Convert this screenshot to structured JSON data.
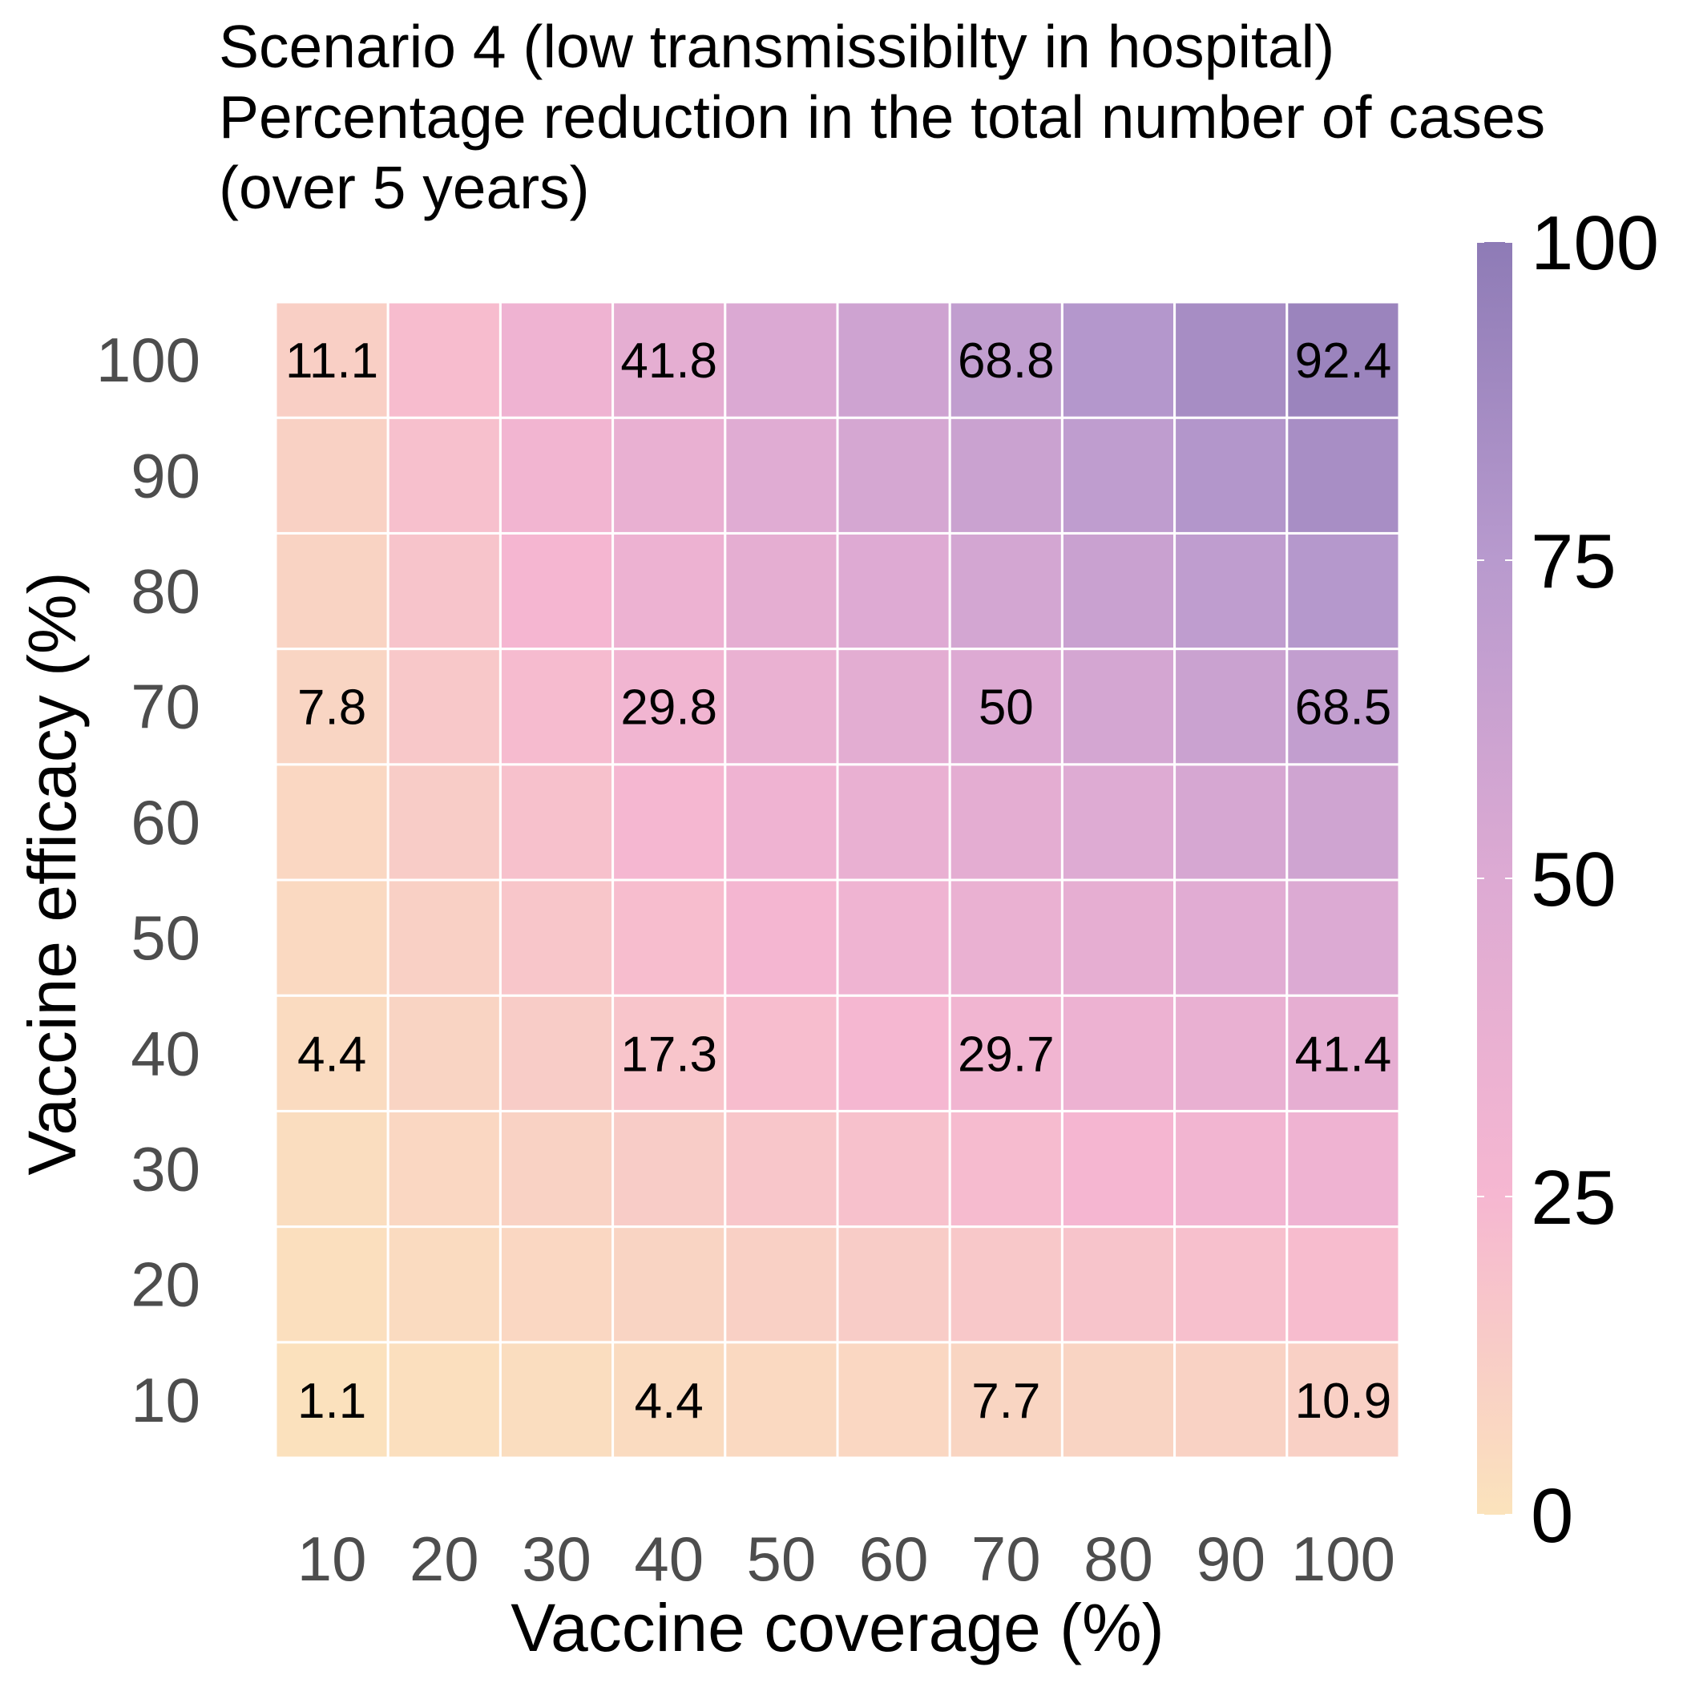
{
  "chart_data": {
    "type": "heatmap",
    "title_lines": [
      "Scenario 4 (low transmissibilty in hospital)",
      "Percentage reduction in the total number of cases",
      "(over 5 years)"
    ],
    "xlabel": "Vaccine coverage (%)",
    "ylabel": "Vaccine efficacy (%)",
    "x_categories": [
      "10",
      "20",
      "30",
      "40",
      "50",
      "60",
      "70",
      "80",
      "90",
      "100"
    ],
    "y_categories": [
      "10",
      "20",
      "30",
      "40",
      "50",
      "60",
      "70",
      "80",
      "90",
      "100"
    ],
    "z_values": [
      [
        1.1,
        2.2,
        3.3,
        4.4,
        5.5,
        6.6,
        7.7,
        8.8,
        9.8,
        10.9
      ],
      [
        2.2,
        4.4,
        6.6,
        8.8,
        11.0,
        13.2,
        15.4,
        17.6,
        19.8,
        21.9
      ],
      [
        3.3,
        6.6,
        9.8,
        13.1,
        16.4,
        19.6,
        22.7,
        26.0,
        29.2,
        32.3
      ],
      [
        4.4,
        8.7,
        13.0,
        17.3,
        21.5,
        25.6,
        29.7,
        33.7,
        37.6,
        41.4
      ],
      [
        5.5,
        10.9,
        16.2,
        21.5,
        26.6,
        31.6,
        36.6,
        41.4,
        46.1,
        50.6
      ],
      [
        6.6,
        13.1,
        19.5,
        25.7,
        31.8,
        37.7,
        43.4,
        49.0,
        54.4,
        59.6
      ],
      [
        7.8,
        15.4,
        22.7,
        29.8,
        36.8,
        43.6,
        50.0,
        56.4,
        62.6,
        68.5
      ],
      [
        8.9,
        17.6,
        26.0,
        34.1,
        41.9,
        49.4,
        56.6,
        63.5,
        70.2,
        76.6
      ],
      [
        10.0,
        19.8,
        29.1,
        38.1,
        46.8,
        55.1,
        63.0,
        70.6,
        77.9,
        84.7
      ],
      [
        11.1,
        22.0,
        32.4,
        41.8,
        51.3,
        60.3,
        68.8,
        77.1,
        85.1,
        92.4
      ]
    ],
    "labeled_cells": [
      {
        "x": "10",
        "y": "100",
        "text": "11.1"
      },
      {
        "x": "40",
        "y": "100",
        "text": "41.8"
      },
      {
        "x": "70",
        "y": "100",
        "text": "68.8"
      },
      {
        "x": "100",
        "y": "100",
        "text": "92.4"
      },
      {
        "x": "10",
        "y": "70",
        "text": "7.8"
      },
      {
        "x": "40",
        "y": "70",
        "text": "29.8"
      },
      {
        "x": "70",
        "y": "70",
        "text": "50"
      },
      {
        "x": "100",
        "y": "70",
        "text": "68.5"
      },
      {
        "x": "10",
        "y": "40",
        "text": "4.4"
      },
      {
        "x": "40",
        "y": "40",
        "text": "17.3"
      },
      {
        "x": "70",
        "y": "40",
        "text": "29.7"
      },
      {
        "x": "100",
        "y": "40",
        "text": "41.4"
      },
      {
        "x": "10",
        "y": "10",
        "text": "1.1"
      },
      {
        "x": "40",
        "y": "10",
        "text": "4.4"
      },
      {
        "x": "70",
        "y": "10",
        "text": "7.7"
      },
      {
        "x": "100",
        "y": "10",
        "text": "10.9"
      }
    ],
    "color_scale": {
      "range": [
        0,
        100
      ],
      "ticks": [
        "0",
        "25",
        "50",
        "75",
        "100"
      ],
      "stops": [
        {
          "value": 0,
          "color": "#fbe3bc"
        },
        {
          "value": 25,
          "color": "#f6b7d1"
        },
        {
          "value": 50,
          "color": "#ddaad3"
        },
        {
          "value": 75,
          "color": "#b89ace"
        },
        {
          "value": 100,
          "color": "#8e7bb6"
        }
      ]
    },
    "legend_position": "right",
    "grid": false,
    "cell_border_color": "#ffffff"
  }
}
